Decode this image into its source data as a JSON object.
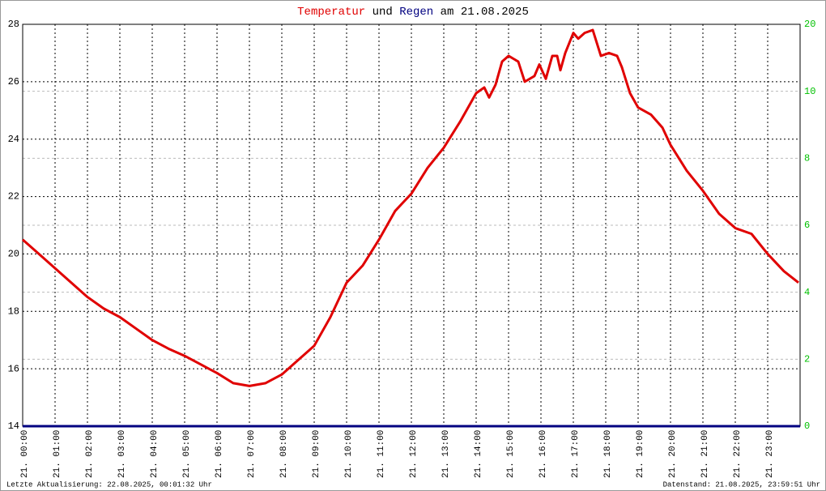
{
  "chart_data": {
    "type": "line",
    "title_joiner": "und",
    "title_date": "am 21.08.2025",
    "footer_left": "Letzte Aktualisierung: 22.08.2025, 00:01:32 Uhr",
    "footer_right": "Datenstand: 21.08.2025, 23:59:51 Uhr",
    "xlim": [
      0,
      24
    ],
    "xticks": [
      {
        "value": 0,
        "label": "21. 00:00"
      },
      {
        "value": 1,
        "label": "21. 01:00"
      },
      {
        "value": 2,
        "label": "21. 02:00"
      },
      {
        "value": 3,
        "label": "21. 03:00"
      },
      {
        "value": 4,
        "label": "21. 04:00"
      },
      {
        "value": 5,
        "label": "21. 05:00"
      },
      {
        "value": 6,
        "label": "21. 06:00"
      },
      {
        "value": 7,
        "label": "21. 07:00"
      },
      {
        "value": 8,
        "label": "21. 08:00"
      },
      {
        "value": 9,
        "label": "21. 09:00"
      },
      {
        "value": 10,
        "label": "21. 10:00"
      },
      {
        "value": 11,
        "label": "21. 11:00"
      },
      {
        "value": 12,
        "label": "21. 12:00"
      },
      {
        "value": 13,
        "label": "21. 13:00"
      },
      {
        "value": 14,
        "label": "21. 14:00"
      },
      {
        "value": 15,
        "label": "21. 15:00"
      },
      {
        "value": 16,
        "label": "21. 16:00"
      },
      {
        "value": 17,
        "label": "21. 17:00"
      },
      {
        "value": 18,
        "label": "21. 18:00"
      },
      {
        "value": 19,
        "label": "21. 19:00"
      },
      {
        "value": 20,
        "label": "21. 20:00"
      },
      {
        "value": 21,
        "label": "21. 21:00"
      },
      {
        "value": 22,
        "label": "21. 22:00"
      },
      {
        "value": 23,
        "label": "21. 23:00"
      }
    ],
    "ylim": [
      14,
      28
    ],
    "yticks": [
      14,
      16,
      18,
      20,
      22,
      24,
      26,
      28
    ],
    "y2lim": [
      0,
      12
    ],
    "y2ticks": [
      0,
      2,
      4,
      6,
      8,
      10
    ],
    "y2_top_label": "20",
    "y2_color": "#00c000",
    "grid": true,
    "series": [
      {
        "name": "Temperatur",
        "color": "#e00000",
        "x": [
          0,
          0.5,
          1,
          1.5,
          2,
          2.5,
          3,
          3.5,
          4,
          4.5,
          5,
          5.5,
          6,
          6.5,
          7,
          7.5,
          8,
          8.5,
          9,
          9.5,
          10,
          10.5,
          11,
          11.5,
          12,
          12.5,
          13,
          13.5,
          14,
          14.25,
          14.4,
          14.6,
          14.8,
          15,
          15.3,
          15.5,
          15.8,
          15.95,
          16.15,
          16.35,
          16.5,
          16.6,
          16.75,
          17,
          17.15,
          17.35,
          17.6,
          17.85,
          18.1,
          18.35,
          18.5,
          18.75,
          19,
          19.4,
          19.75,
          20,
          20.5,
          21,
          21.5,
          22,
          22.5,
          23,
          23.5,
          23.95
        ],
        "values": [
          20.5,
          20.0,
          19.5,
          19.0,
          18.5,
          18.1,
          17.8,
          17.4,
          17.0,
          16.7,
          16.45,
          16.15,
          15.85,
          15.5,
          15.4,
          15.5,
          15.8,
          16.3,
          16.8,
          17.8,
          19.0,
          19.6,
          20.5,
          21.5,
          22.1,
          23.0,
          23.7,
          24.6,
          25.6,
          25.8,
          25.45,
          25.9,
          26.7,
          26.9,
          26.7,
          26.0,
          26.2,
          26.6,
          26.1,
          26.9,
          26.9,
          26.4,
          27.0,
          27.7,
          27.5,
          27.7,
          27.8,
          26.9,
          27.0,
          26.9,
          26.5,
          25.6,
          25.1,
          24.85,
          24.4,
          23.8,
          22.9,
          22.2,
          21.4,
          20.9,
          20.7,
          20.0,
          19.4,
          19.0
        ]
      },
      {
        "name": "Regen",
        "color": "#000080",
        "axis": "y2",
        "x": [
          0,
          24
        ],
        "values": [
          0,
          0
        ]
      }
    ]
  }
}
